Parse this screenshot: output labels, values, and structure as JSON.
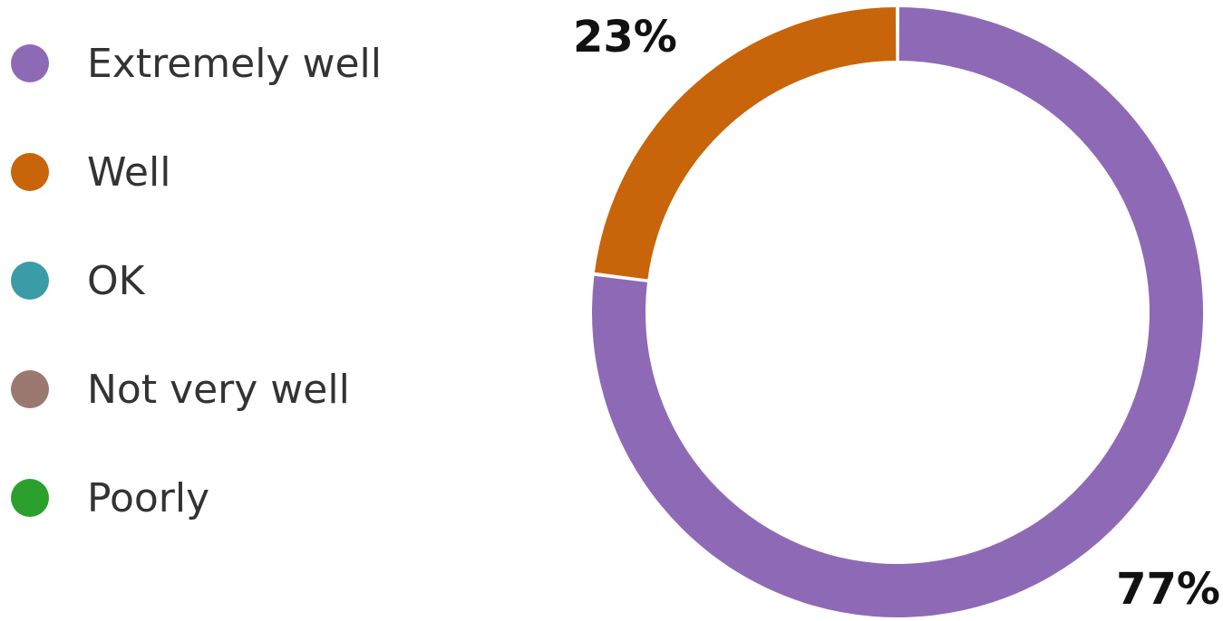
{
  "chart_data": {
    "type": "pie",
    "variant": "donut",
    "legend_position": "left",
    "series": [
      {
        "name": "Extremely well",
        "value": 77,
        "color": "#8e6ab6"
      },
      {
        "name": "Well",
        "value": 23,
        "color": "#c8640a"
      },
      {
        "name": "OK",
        "value": 0,
        "color": "#3a9ca6"
      },
      {
        "name": "Not very well",
        "value": 0,
        "color": "#9b7872"
      },
      {
        "name": "Poorly",
        "value": 0,
        "color": "#2ca02c"
      }
    ],
    "data_labels": [
      "77%",
      "23%"
    ]
  }
}
